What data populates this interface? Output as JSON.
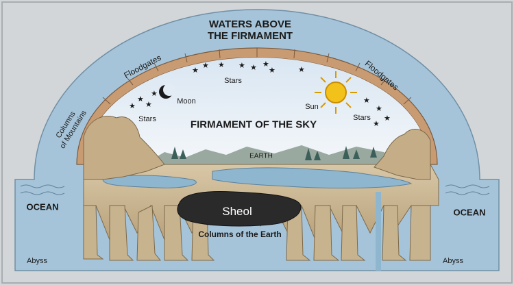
{
  "diagram": {
    "labels": {
      "waters_line1": "WATERS ABOVE",
      "waters_line2": "THE FIRMAMENT",
      "firmament": "FIRMAMENT OF THE SKY",
      "earth": "EARTH",
      "sheol": "Sheol",
      "columns_earth": "Columns of the Earth",
      "ocean_left": "OCEAN",
      "ocean_right": "OCEAN",
      "abyss_left": "Abyss",
      "abyss_right": "Abyss",
      "floodgates_left": "Floodgates",
      "floodgates_right": "Floodgates",
      "columns_mountains_line1": "Columns",
      "columns_mountains_line2": "of Mountains",
      "moon": "Moon",
      "sun": "Sun",
      "stars_top": "Stars",
      "stars_left": "Stars",
      "stars_right": "Stars"
    },
    "colors": {
      "water": "#a9c8dc",
      "sky": "#e6eef6",
      "rock": "#cdb99a",
      "rock_dark": "#9b8664",
      "firmament_band": "#c79a73",
      "sheol": "#2b2b2b",
      "sun": "#f2c21b"
    }
  }
}
